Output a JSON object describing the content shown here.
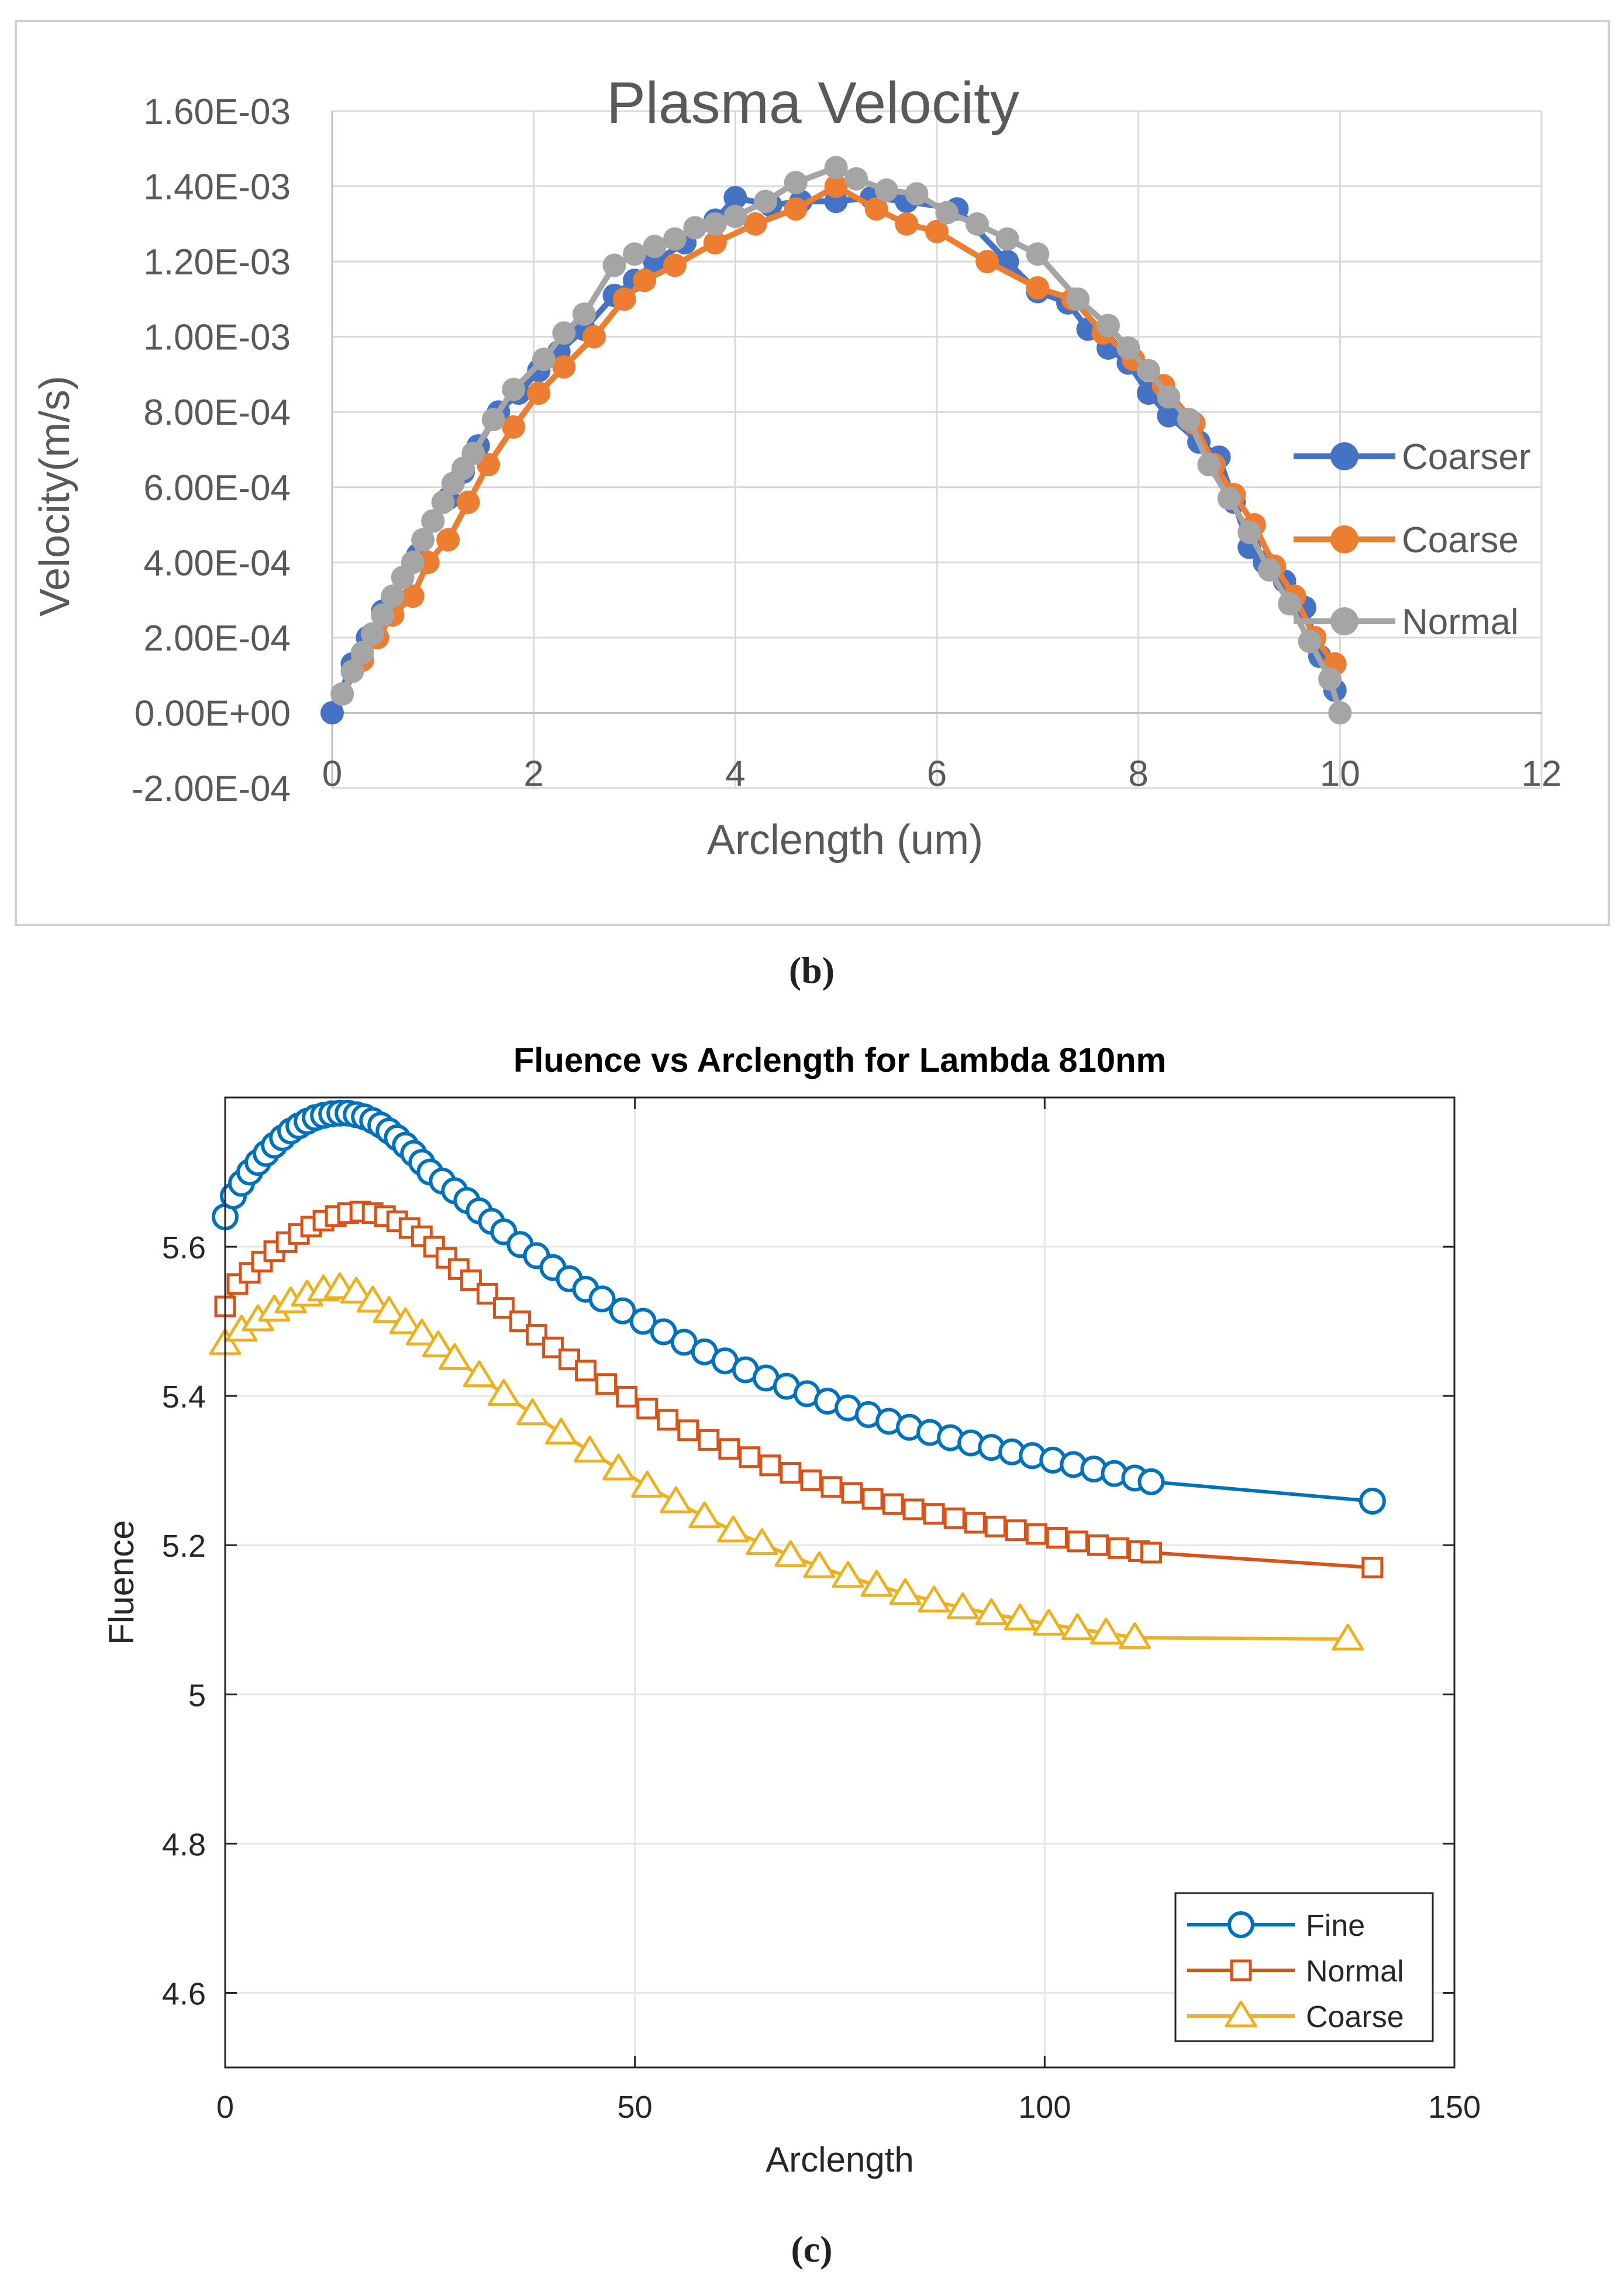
{
  "panels": [
    {
      "label": "(b)"
    },
    {
      "label": "(c)"
    }
  ],
  "colors": {
    "coarser": "#4472C4",
    "coarse": "#ED7D31",
    "normal_gray": "#A5A5A5",
    "fine": "#0072BD",
    "normal_red": "#D95319",
    "coarse_yellow": "#EDB120",
    "grid_b": "#D9D9D9",
    "grid_c": "#E6E6E6",
    "text_b": "#595959",
    "frame_b": "#D0D0D0"
  },
  "chart_data": [
    {
      "type": "line",
      "title": "Plasma Velocity",
      "xlabel": "Arclength (um)",
      "ylabel": "Velocity(m/s)",
      "xlim": [
        0,
        12
      ],
      "ylim": [
        -0.0002,
        0.0016
      ],
      "x_ticks": [
        0,
        2,
        4,
        6,
        8,
        10,
        12
      ],
      "x_tick_labels": [
        "0",
        "2",
        "4",
        "6",
        "8",
        "10",
        "12"
      ],
      "y_ticks": [
        -0.0002,
        0,
        0.0002,
        0.0004,
        0.0006,
        0.0008,
        0.001,
        0.0012,
        0.0014,
        0.0016
      ],
      "y_tick_labels": [
        "-2.00E-04",
        "0.00E+00",
        "2.00E-04",
        "4.00E-04",
        "6.00E-04",
        "8.00E-04",
        "1.00E-03",
        "1.20E-03",
        "1.40E-03",
        "1.60E-03"
      ],
      "grid": true,
      "legend_position": "right",
      "series": [
        {
          "name": "Coarser",
          "x": [
            0,
            0.2,
            0.35,
            0.5,
            0.6,
            0.85,
            1.0,
            1.15,
            1.3,
            1.45,
            1.65,
            1.85,
            2.05,
            2.25,
            2.5,
            2.8,
            3.0,
            3.2,
            3.5,
            3.8,
            4.0,
            4.35,
            4.65,
            5.0,
            5.35,
            5.7,
            6.2,
            6.7,
            7.0,
            7.3,
            7.5,
            7.7,
            7.9,
            8.1,
            8.3,
            8.6,
            8.8,
            8.95,
            9.1,
            9.25,
            9.45,
            9.65,
            9.8,
            9.95
          ],
          "y": [
            0,
            0.00013,
            0.0002,
            0.00027,
            0.0003,
            0.00042,
            0.00051,
            0.00057,
            0.00064,
            0.00071,
            0.0008,
            0.00085,
            0.00091,
            0.00096,
            0.00102,
            0.00111,
            0.00115,
            0.0012,
            0.00125,
            0.00131,
            0.00137,
            0.00135,
            0.00136,
            0.00136,
            0.00137,
            0.00136,
            0.00134,
            0.0012,
            0.00112,
            0.00109,
            0.00102,
            0.00097,
            0.00093,
            0.00085,
            0.00079,
            0.00072,
            0.00068,
            0.00056,
            0.00044,
            0.0004,
            0.00035,
            0.00028,
            0.00015,
            6e-05
          ]
        },
        {
          "name": "Coarse",
          "x": [
            0.1,
            0.3,
            0.45,
            0.6,
            0.8,
            0.95,
            1.15,
            1.35,
            1.55,
            1.8,
            2.05,
            2.3,
            2.6,
            2.9,
            3.1,
            3.4,
            3.8,
            4.2,
            4.6,
            5.0,
            5.4,
            5.7,
            6.0,
            6.5,
            7.0,
            7.35,
            7.65,
            7.95,
            8.25,
            8.55,
            8.75,
            8.95,
            9.15,
            9.35,
            9.55,
            9.75,
            9.95
          ],
          "y": [
            5e-05,
            0.00014,
            0.0002,
            0.00026,
            0.00031,
            0.0004,
            0.00046,
            0.00056,
            0.00066,
            0.00076,
            0.00085,
            0.00092,
            0.001,
            0.0011,
            0.00115,
            0.00119,
            0.00125,
            0.0013,
            0.00134,
            0.0014,
            0.00134,
            0.0013,
            0.00128,
            0.0012,
            0.00113,
            0.0011,
            0.00101,
            0.00094,
            0.00087,
            0.00077,
            0.00066,
            0.00058,
            0.0005,
            0.00039,
            0.00031,
            0.0002,
            0.00013
          ]
        },
        {
          "name": "Normal",
          "x": [
            0.1,
            0.2,
            0.3,
            0.4,
            0.5,
            0.6,
            0.7,
            0.8,
            0.9,
            1.0,
            1.1,
            1.2,
            1.3,
            1.4,
            1.6,
            1.8,
            2.1,
            2.3,
            2.5,
            2.8,
            3.0,
            3.2,
            3.4,
            3.6,
            3.8,
            4.0,
            4.3,
            4.6,
            5.0,
            5.2,
            5.5,
            5.8,
            6.1,
            6.4,
            6.7,
            7.0,
            7.4,
            7.7,
            7.9,
            8.1,
            8.3,
            8.5,
            8.7,
            8.9,
            9.1,
            9.3,
            9.5,
            9.7,
            9.9,
            10.0
          ],
          "y": [
            5e-05,
            0.00011,
            0.00016,
            0.00021,
            0.00026,
            0.00031,
            0.00036,
            0.0004,
            0.00046,
            0.00051,
            0.00056,
            0.00061,
            0.00065,
            0.00069,
            0.00078,
            0.00086,
            0.00094,
            0.00101,
            0.00106,
            0.00119,
            0.00122,
            0.00124,
            0.00126,
            0.00129,
            0.0013,
            0.00132,
            0.00136,
            0.00141,
            0.00145,
            0.00142,
            0.00139,
            0.00138,
            0.00133,
            0.0013,
            0.00126,
            0.00122,
            0.0011,
            0.00103,
            0.00097,
            0.00091,
            0.00084,
            0.00078,
            0.00066,
            0.00057,
            0.00048,
            0.00038,
            0.00029,
            0.00019,
            9e-05,
            0.0
          ]
        }
      ]
    },
    {
      "type": "line",
      "title": "Fluence vs Arclength for Lambda 810nm",
      "xlabel": "Arclength",
      "ylabel": "Fluence",
      "xlim": [
        0,
        150
      ],
      "ylim": [
        4.5,
        5.8
      ],
      "x_ticks": [
        0,
        50,
        100,
        150
      ],
      "x_tick_labels": [
        "0",
        "50",
        "100",
        "150"
      ],
      "y_ticks": [
        4.6,
        4.8,
        5.0,
        5.2,
        5.4,
        5.6
      ],
      "y_tick_labels": [
        "4.6",
        "4.8",
        "5",
        "5.2",
        "5.4",
        "5.6"
      ],
      "grid": true,
      "legend_position": "bottom-right",
      "series": [
        {
          "name": "Fine",
          "marker": "circle",
          "x": [
            0,
            1,
            2,
            3,
            4,
            5,
            6,
            7,
            8,
            9,
            10,
            11,
            12,
            13,
            14,
            15,
            16,
            17,
            18,
            19,
            20,
            21,
            22,
            23,
            24,
            25,
            26.5,
            28,
            29.5,
            31,
            32.5,
            34,
            36,
            38,
            40,
            42,
            44,
            46,
            48.5,
            51,
            53.5,
            56,
            58.5,
            61,
            63.5,
            66,
            68.5,
            71,
            73.5,
            76,
            78.5,
            81,
            83.5,
            86,
            88.5,
            91,
            93.5,
            96,
            98.5,
            101,
            103.5,
            106,
            108.5,
            111,
            113,
            140
          ],
          "y": [
            5.64,
            5.668,
            5.685,
            5.7,
            5.713,
            5.725,
            5.736,
            5.746,
            5.755,
            5.762,
            5.768,
            5.773,
            5.776,
            5.778,
            5.779,
            5.779,
            5.777,
            5.774,
            5.769,
            5.763,
            5.755,
            5.746,
            5.736,
            5.725,
            5.713,
            5.7,
            5.688,
            5.675,
            5.662,
            5.648,
            5.634,
            5.62,
            5.603,
            5.588,
            5.572,
            5.557,
            5.543,
            5.53,
            5.514,
            5.5,
            5.486,
            5.472,
            5.459,
            5.447,
            5.435,
            5.424,
            5.413,
            5.403,
            5.393,
            5.384,
            5.375,
            5.366,
            5.358,
            5.351,
            5.344,
            5.337,
            5.331,
            5.325,
            5.32,
            5.314,
            5.308,
            5.302,
            5.296,
            5.29,
            5.285,
            5.259
          ]
        },
        {
          "name": "Normal",
          "marker": "square",
          "x": [
            0,
            1.5,
            3,
            4.5,
            6,
            7.5,
            9,
            10.5,
            12,
            13.5,
            15,
            16.5,
            18,
            19.5,
            21,
            22.5,
            24,
            25.5,
            27,
            28.5,
            30,
            32,
            34,
            36,
            38,
            40,
            42,
            44,
            46.5,
            49,
            51.5,
            54,
            56.5,
            59,
            61.5,
            64,
            66.5,
            69,
            71.5,
            74,
            76.5,
            79,
            81.5,
            84,
            86.5,
            89,
            91.5,
            94,
            96.5,
            99,
            101.5,
            104,
            106.5,
            109,
            111.5,
            113,
            140
          ],
          "y": [
            5.52,
            5.55,
            5.565,
            5.58,
            5.594,
            5.606,
            5.617,
            5.627,
            5.635,
            5.641,
            5.645,
            5.647,
            5.645,
            5.641,
            5.634,
            5.625,
            5.614,
            5.6,
            5.585,
            5.57,
            5.555,
            5.537,
            5.518,
            5.5,
            5.482,
            5.465,
            5.449,
            5.434,
            5.416,
            5.399,
            5.383,
            5.368,
            5.354,
            5.341,
            5.329,
            5.318,
            5.307,
            5.297,
            5.287,
            5.278,
            5.27,
            5.262,
            5.255,
            5.248,
            5.242,
            5.236,
            5.23,
            5.225,
            5.22,
            5.215,
            5.21,
            5.205,
            5.2,
            5.196,
            5.192,
            5.19,
            5.17
          ]
        },
        {
          "name": "Coarse",
          "marker": "triangle",
          "x": [
            0,
            2,
            4,
            6,
            8,
            10,
            12,
            14,
            16,
            18,
            20,
            22,
            24,
            26,
            28,
            31,
            34,
            37.5,
            41,
            44.5,
            48,
            51.5,
            55,
            58.5,
            62,
            65.5,
            69,
            72.5,
            76,
            79.5,
            83,
            86.5,
            90,
            93.5,
            97,
            100.5,
            104,
            107.5,
            111,
            137
          ],
          "y": [
            5.47,
            5.488,
            5.502,
            5.515,
            5.526,
            5.535,
            5.542,
            5.545,
            5.539,
            5.527,
            5.513,
            5.498,
            5.483,
            5.467,
            5.45,
            5.427,
            5.402,
            5.376,
            5.35,
            5.326,
            5.302,
            5.279,
            5.258,
            5.238,
            5.219,
            5.202,
            5.186,
            5.171,
            5.158,
            5.146,
            5.135,
            5.125,
            5.116,
            5.108,
            5.101,
            5.094,
            5.088,
            5.082,
            5.076,
            5.074
          ]
        }
      ]
    }
  ]
}
